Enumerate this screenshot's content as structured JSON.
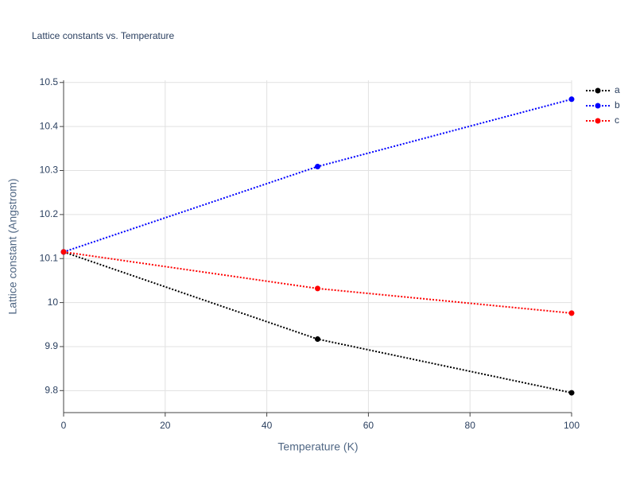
{
  "chart_data": {
    "type": "line",
    "title": "Lattice constants vs. Temperature",
    "x_label": "Temperature (K)",
    "y_label": "Lattice constant (Angstrom)",
    "x": [
      0,
      50,
      100
    ],
    "series": [
      {
        "name": "a",
        "color": "#000000",
        "values": [
          10.115,
          9.917,
          9.795
        ]
      },
      {
        "name": "b",
        "color": "#0000ff",
        "values": [
          10.115,
          10.309,
          10.462
        ]
      },
      {
        "name": "c",
        "color": "#ff0000",
        "values": [
          10.115,
          10.032,
          9.976
        ]
      }
    ],
    "xlim": [
      0,
      100
    ],
    "xticks": [
      0,
      20,
      40,
      60,
      80,
      100
    ],
    "ylim": [
      9.75,
      10.505
    ],
    "yticks": [
      9.8,
      9.9,
      10,
      10.1,
      10.2,
      10.3,
      10.4,
      10.5
    ],
    "grid": true,
    "legend": "top-right"
  }
}
